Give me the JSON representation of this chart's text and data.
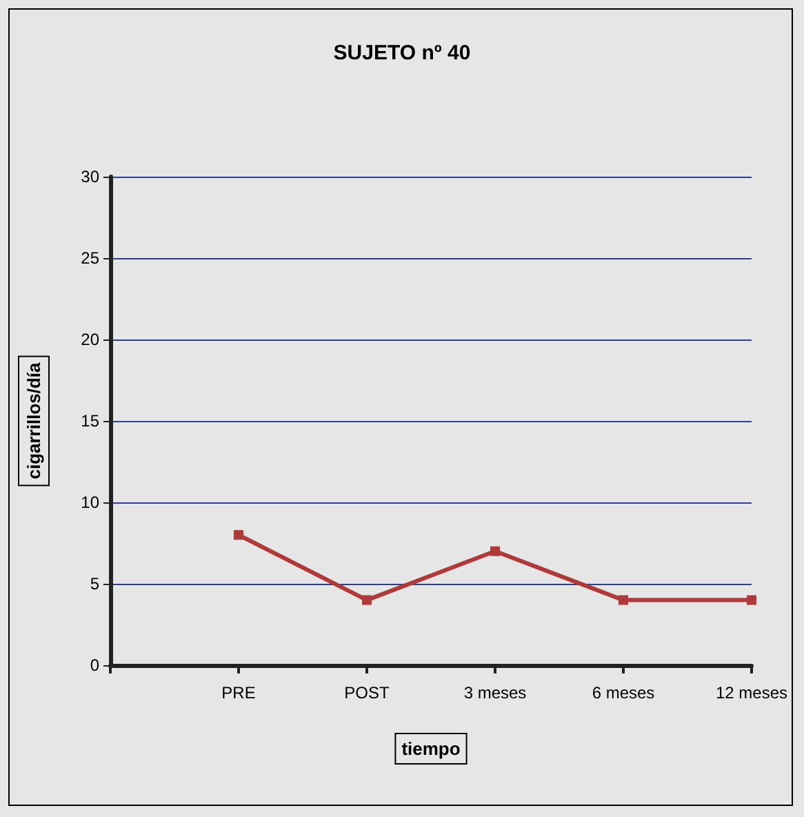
{
  "chart_data": {
    "type": "line",
    "title": "SUJETO nº 40",
    "xlabel": "tiempo",
    "ylabel": "cigarrillos/día",
    "categories": [
      null,
      "PRE",
      "POST",
      "3 meses",
      "6 meses",
      "12 meses"
    ],
    "series": [
      {
        "color": "#b03a3a",
        "values": [
          null,
          8,
          4,
          7,
          4,
          4
        ]
      }
    ],
    "ylim": [
      0,
      30
    ],
    "yticks": [
      0,
      5,
      10,
      15,
      20,
      25,
      30
    ],
    "grid": "y",
    "marker": "square",
    "line_style": "solid"
  }
}
